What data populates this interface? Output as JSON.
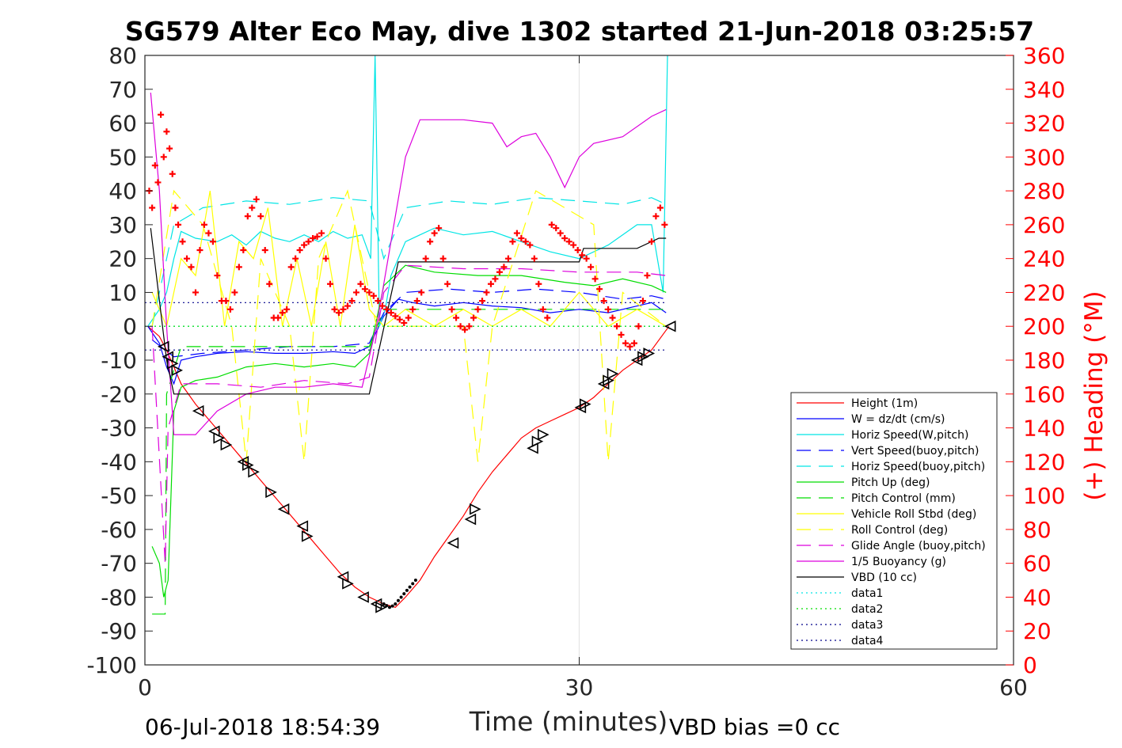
{
  "chart_data": {
    "type": "line",
    "title": "SG579 Alter Eco May, dive 1302 started 21-Jun-2018 03:25:57",
    "xlabel": "Time (minutes)",
    "ylabel_right": "(+) Heading (°M)",
    "xlim": [
      0,
      60
    ],
    "ylim": [
      -100,
      80
    ],
    "ylim_right": [
      0,
      360
    ],
    "x_ticks": [
      "0",
      "30",
      "60"
    ],
    "y_ticks": [
      "80",
      "70",
      "60",
      "50",
      "40",
      "30",
      "20",
      "10",
      "0",
      "-10",
      "-20",
      "-30",
      "-40",
      "-50",
      "-60",
      "-70",
      "-80",
      "-90",
      "-100"
    ],
    "y_right_ticks": [
      "360",
      "340",
      "320",
      "300",
      "280",
      "260",
      "240",
      "220",
      "200",
      "180",
      "160",
      "140",
      "120",
      "100",
      "80",
      "60",
      "40",
      "20",
      "0"
    ],
    "grid": "x-only",
    "legend_position": "bottom-right",
    "footer_left": "06-Jul-2018 18:54:39",
    "footer_right": "VBD bias =0 cc",
    "series": [
      {
        "name": "Height (1m)",
        "color": "#ff0000",
        "style": "solid",
        "x": [
          0.2,
          1.0,
          1.5,
          2.0,
          2.5,
          3.5,
          4.5,
          5.5,
          6.5,
          7.5,
          8.5,
          9.5,
          10.5,
          11.5,
          12.5,
          13.5,
          14.5,
          15.5,
          16.5,
          17.3,
          18.0,
          19.0,
          20.0,
          21.0,
          22.0,
          23.0,
          24.0,
          25.0,
          26.0,
          27.0,
          28.0,
          29.0,
          30.0,
          31.0,
          32.0,
          33.0,
          34.0,
          35.0,
          36.2
        ],
        "y": [
          0,
          -3,
          -7,
          -12,
          -17,
          -23,
          -28,
          -33,
          -38,
          -43,
          -48,
          -53,
          -58,
          -63,
          -68,
          -73,
          -77,
          -80,
          -82,
          -83,
          -80,
          -75,
          -68,
          -62,
          -56,
          -49,
          -43,
          -38,
          -33,
          -30,
          -28,
          -26,
          -24,
          -21,
          -17,
          -13,
          -10,
          -7,
          0
        ]
      },
      {
        "name": "W = dz/dt (cm/s)",
        "color": "#0000ff",
        "style": "solid",
        "x": [
          0.2,
          1.0,
          1.5,
          2.0,
          2.5,
          3.5,
          5,
          7,
          9,
          11,
          13,
          14.5,
          15.5,
          16.5,
          17.5,
          18.5,
          20,
          22,
          24,
          26,
          28,
          30,
          32,
          34,
          35,
          36
        ],
        "y": [
          0,
          -5,
          -12,
          -17,
          -10,
          -9,
          -8,
          -7.5,
          -8,
          -8,
          -7.5,
          -8,
          -6,
          3,
          8,
          7,
          6,
          7,
          6,
          5.5,
          4,
          5,
          4,
          6,
          7,
          4
        ]
      },
      {
        "name": "Horiz Speed(W,pitch)",
        "color": "#00e5e5",
        "style": "solid",
        "x": [
          0.2,
          1.0,
          1.5,
          2.0,
          2.5,
          3.5,
          5,
          6,
          7,
          8,
          9,
          10,
          11,
          12,
          13,
          14,
          15,
          15.6,
          15.9,
          16.2,
          16.6,
          17,
          18,
          19,
          20,
          22,
          24,
          26,
          28,
          30,
          32,
          34,
          35,
          35.8,
          36.1
        ],
        "y": [
          0,
          5,
          10,
          20,
          28,
          26,
          25,
          27,
          24,
          28,
          26,
          25,
          27,
          25,
          28,
          26,
          27,
          20,
          80,
          0,
          5,
          15,
          25,
          27,
          29,
          27,
          28,
          25,
          22,
          20,
          24,
          30,
          30,
          10,
          80
        ]
      },
      {
        "name": "Vert Speed(buoy,pitch)",
        "color": "#0000ff",
        "style": "dashed",
        "x": [
          0.5,
          2,
          4,
          7,
          10,
          13,
          15.5,
          16.5,
          18,
          21,
          24,
          27,
          30,
          33,
          35,
          36
        ],
        "y": [
          -4,
          -9,
          -8,
          -7,
          -6,
          -6,
          -5,
          4,
          10,
          11,
          10,
          11,
          10,
          8,
          9,
          8
        ]
      },
      {
        "name": "Horiz Speed(buoy,pitch)",
        "color": "#00e5e5",
        "style": "dashed",
        "x": [
          0.5,
          2,
          4,
          7,
          10,
          13,
          15.5,
          16.5,
          18,
          21,
          24,
          27,
          30,
          33,
          35,
          36
        ],
        "y": [
          0,
          30,
          35,
          37,
          36,
          38,
          37,
          20,
          35,
          37,
          36,
          38,
          37,
          36,
          38,
          36
        ]
      },
      {
        "name": "Pitch Up (deg)",
        "color": "#00dd00",
        "style": "solid",
        "x": [
          0.5,
          1.0,
          1.3,
          1.6,
          2.0,
          2.5,
          3.5,
          5,
          7,
          9,
          11,
          13,
          14.5,
          15.5,
          16.5,
          18,
          20,
          23,
          26,
          29,
          31,
          33,
          35,
          36
        ],
        "y": [
          -65,
          -70,
          -80,
          -75,
          -25,
          -18,
          -16,
          -15,
          -12,
          -11,
          -12,
          -11,
          -12,
          -8,
          12,
          18,
          16,
          15,
          15,
          13,
          12,
          14,
          12,
          10
        ]
      },
      {
        "name": "Pitch Control (mm)",
        "color": "#00dd00",
        "style": "dashed",
        "x": [
          0.5,
          1.4,
          1.5,
          2.5,
          15.5,
          16.5,
          17,
          36
        ],
        "y": [
          -85,
          -85,
          -20,
          -6,
          -6,
          5,
          5,
          5
        ]
      },
      {
        "name": "Vehicle Roll Stbd (deg)",
        "color": "#ffff00",
        "style": "solid",
        "x": [
          0.5,
          1.5,
          2.5,
          3.5,
          4.5,
          5.5,
          6.5,
          7.5,
          8.5,
          9.5,
          10.5,
          11.5,
          12.5,
          13.5,
          14.5,
          15.5,
          16.5,
          18,
          20,
          22,
          24,
          26,
          28,
          30,
          32,
          34,
          36
        ],
        "y": [
          10,
          0,
          20,
          15,
          40,
          0,
          25,
          20,
          35,
          0,
          20,
          0,
          25,
          0,
          30,
          5,
          0,
          5,
          0,
          5,
          0,
          5,
          0,
          10,
          0,
          5,
          0
        ]
      },
      {
        "name": "Roll Control (deg)",
        "color": "#ffff00",
        "style": "dashed",
        "x": [
          0.5,
          2,
          4,
          6,
          7,
          8,
          10,
          11,
          12,
          14,
          16,
          18,
          22,
          23,
          24,
          27,
          31,
          32,
          33,
          36
        ],
        "y": [
          0,
          40,
          30,
          0,
          -40,
          20,
          0,
          -40,
          20,
          40,
          0,
          0,
          0,
          -40,
          0,
          40,
          30,
          -40,
          10,
          0
        ]
      },
      {
        "name": "Glide Angle (buoy,pitch)",
        "color": "#dd00dd",
        "style": "dashed",
        "x": [
          0.5,
          1.4,
          1.6,
          2.5,
          5,
          8,
          11,
          14,
          15.5,
          16.5,
          18,
          22,
          26,
          30,
          34,
          36
        ],
        "y": [
          0,
          -70,
          -30,
          -17,
          -17,
          -18,
          -16,
          -17,
          -15,
          10,
          18,
          17,
          17,
          16,
          16,
          15
        ]
      },
      {
        "name": "1/5 Buoyancy (g)",
        "color": "#dd00dd",
        "style": "solid",
        "x": [
          0.4,
          1.0,
          1.5,
          2.0,
          3.5,
          5,
          7,
          9,
          11,
          13,
          15,
          16,
          18,
          19,
          20,
          22,
          24,
          25,
          26,
          27,
          28,
          29,
          30,
          31,
          33,
          35,
          36
        ],
        "y": [
          69,
          40,
          0,
          -32,
          -32,
          -25,
          -20,
          -18,
          -18,
          -17,
          -18,
          0,
          50,
          61,
          61,
          61,
          60,
          53,
          56,
          57,
          50,
          41,
          50,
          54,
          56,
          62,
          64
        ]
      },
      {
        "name": "VBD (10 cc)",
        "color": "#000000",
        "style": "solid",
        "x": [
          0.4,
          1.5,
          2.0,
          15.5,
          17.5,
          20,
          30,
          30.3,
          34,
          35.5,
          36
        ],
        "y": [
          29,
          -10,
          -20,
          -20,
          19,
          19,
          19,
          23,
          23,
          26,
          26
        ]
      },
      {
        "name": "data1",
        "color": "#00e5e5",
        "style": "dotted",
        "x": [
          0,
          36
        ],
        "y": [
          0,
          0
        ]
      },
      {
        "name": "data2",
        "color": "#00dd00",
        "style": "dotted",
        "x": [
          0,
          36
        ],
        "y": [
          0,
          0
        ]
      },
      {
        "name": "data3",
        "color": "#00008b",
        "style": "dotted",
        "x": [
          0,
          36
        ],
        "y": [
          7,
          7
        ]
      },
      {
        "name": "data4",
        "color": "#00008b",
        "style": "dotted",
        "x": [
          0,
          36
        ],
        "y": [
          -7,
          -7
        ]
      }
    ],
    "heading_points": {
      "name": "(+) Heading",
      "color": "#ff0000",
      "x": [
        0.3,
        0.5,
        0.7,
        0.9,
        1.1,
        1.3,
        1.5,
        1.7,
        1.9,
        2.1,
        2.3,
        2.6,
        2.9,
        3.2,
        3.5,
        3.8,
        4.1,
        4.4,
        4.7,
        5.0,
        5.3,
        5.6,
        5.9,
        6.2,
        6.5,
        6.8,
        7.1,
        7.4,
        7.7,
        8.0,
        8.3,
        8.6,
        8.9,
        9.2,
        9.5,
        9.8,
        10.1,
        10.4,
        10.7,
        11.0,
        11.3,
        11.6,
        11.9,
        12.2,
        12.5,
        12.8,
        13.1,
        13.4,
        13.7,
        14.0,
        14.3,
        14.6,
        14.9,
        15.2,
        15.5,
        15.8,
        16.1,
        16.4,
        16.7,
        17.0,
        17.3,
        17.6,
        17.9,
        18.2,
        18.5,
        18.8,
        19.1,
        19.4,
        19.7,
        20.0,
        20.3,
        20.6,
        20.9,
        21.2,
        21.5,
        21.8,
        22.1,
        22.4,
        22.7,
        23.0,
        23.3,
        23.6,
        23.9,
        24.2,
        24.5,
        24.8,
        25.1,
        25.4,
        25.7,
        26.0,
        26.3,
        26.6,
        26.9,
        27.2,
        27.5,
        27.8,
        28.1,
        28.4,
        28.7,
        29.0,
        29.3,
        29.6,
        29.9,
        30.2,
        30.5,
        30.8,
        31.1,
        31.4,
        31.7,
        32.0,
        32.3,
        32.6,
        32.9,
        33.2,
        33.5,
        33.8,
        34.1,
        34.4,
        34.7,
        35.0,
        35.3,
        35.6,
        35.9
      ],
      "y": [
        280,
        270,
        295,
        285,
        325,
        300,
        315,
        305,
        290,
        270,
        260,
        250,
        240,
        235,
        220,
        245,
        260,
        255,
        250,
        230,
        215,
        215,
        210,
        220,
        235,
        245,
        265,
        270,
        275,
        265,
        245,
        225,
        205,
        205,
        208,
        210,
        235,
        240,
        245,
        248,
        250,
        252,
        253,
        255,
        240,
        225,
        210,
        208,
        210,
        212,
        215,
        220,
        225,
        222,
        220,
        218,
        215,
        212,
        210,
        208,
        206,
        204,
        202,
        205,
        210,
        215,
        220,
        240,
        250,
        255,
        258,
        240,
        225,
        210,
        205,
        200,
        198,
        200,
        205,
        210,
        215,
        220,
        225,
        228,
        232,
        235,
        240,
        250,
        255,
        252,
        250,
        248,
        240,
        225,
        210,
        205,
        260,
        258,
        255,
        252,
        250,
        248,
        245,
        242,
        240,
        235,
        228,
        222,
        215,
        210,
        205,
        200,
        195,
        190,
        188,
        190,
        200,
        215,
        230,
        250,
        265,
        270,
        260
      ]
    },
    "triangle_markers": {
      "color": "#000000",
      "x": [
        1.3,
        1.6,
        1.9,
        2.2,
        3.7,
        4.8,
        5.1,
        5.6,
        6.8,
        7.1,
        7.5,
        8.7,
        9.6,
        10.9,
        11.2,
        13.7,
        14.0,
        15.1,
        16.0,
        16.3,
        21.3,
        22.5,
        22.8,
        26.8,
        27.1,
        27.5,
        30.1,
        30.4,
        31.7,
        32.0,
        32.3,
        34.0,
        34.4,
        34.8,
        36.3
      ],
      "y": [
        -6,
        -9,
        -11,
        -13,
        -25,
        -31,
        -33,
        -35,
        -40,
        -41,
        -43,
        -49,
        -54,
        -59,
        -62,
        -74,
        -76,
        -80,
        -82,
        -83,
        -64,
        -57,
        -54,
        -36,
        -34,
        -32,
        -24,
        -23,
        -17,
        -16,
        -14,
        -10,
        -9,
        -8,
        0
      ],
      "dir": [
        -1,
        -1,
        1,
        1,
        -1,
        -1,
        1,
        1,
        -1,
        1,
        1,
        1,
        -1,
        -1,
        1,
        -1,
        1,
        -1,
        -1,
        1,
        -1,
        -1,
        1,
        -1,
        1,
        1,
        -1,
        1,
        -1,
        1,
        1,
        -1,
        1,
        1,
        -1
      ]
    },
    "dot_markers": {
      "color": "#000000",
      "x": [
        16.5,
        16.7,
        16.9,
        17.1,
        17.3,
        17.5,
        17.7,
        17.9,
        18.1,
        18.3,
        18.5,
        18.7
      ],
      "y": [
        -82,
        -82.5,
        -83,
        -82.6,
        -82,
        -81,
        -80,
        -79,
        -78,
        -77,
        -76,
        -75
      ]
    }
  }
}
